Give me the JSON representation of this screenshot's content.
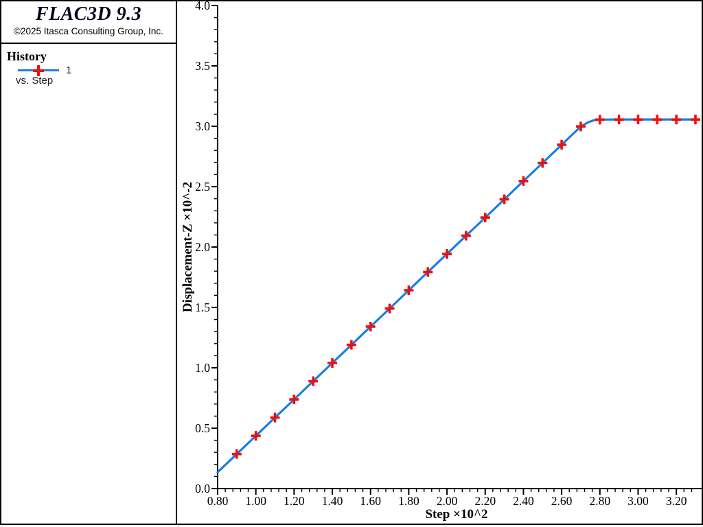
{
  "window": {
    "background": "#ffffff",
    "frame_color": "#000000"
  },
  "sidebar": {
    "title": "FLAC3D 9.3",
    "copyright": "©2025 Itasca Consulting Group, Inc.",
    "section_heading": "History",
    "legend": {
      "series_label": "1",
      "sub_label": "vs. Step",
      "line_color": "#1a7de4",
      "marker_color": "#e81212"
    }
  },
  "chart_data": {
    "type": "line",
    "title": "",
    "xlabel": "Step ×10^2",
    "ylabel": "Displacement-Z ×10^-2",
    "xlim": [
      0.8,
      3.33
    ],
    "ylim": [
      0.0,
      4.0
    ],
    "grid": false,
    "legend_position": "sidebar",
    "axis_color": "#000000",
    "x_major_ticks": [
      0.8,
      1.0,
      1.2,
      1.4,
      1.6,
      1.8,
      2.0,
      2.2,
      2.4,
      2.6,
      2.8,
      3.0,
      3.2
    ],
    "x_tick_labels": [
      "0.80",
      "1.00",
      "1.20",
      "1.40",
      "1.60",
      "1.80",
      "2.00",
      "2.20",
      "2.40",
      "2.60",
      "2.80",
      "3.00",
      "3.20"
    ],
    "x_minor_range": [
      0.8,
      3.28
    ],
    "x_minor_step": 0.04,
    "y_major_ticks": [
      0.0,
      0.5,
      1.0,
      1.5,
      2.0,
      2.5,
      3.0,
      3.5,
      4.0
    ],
    "y_tick_labels": [
      "0.0",
      "0.5",
      "1.0",
      "1.5",
      "2.0",
      "2.5",
      "3.0",
      "3.5",
      "4.0"
    ],
    "y_minor_range": [
      0.0,
      4.0
    ],
    "y_minor_step": 0.1,
    "series": [
      {
        "name": "1",
        "color": "#1a7de4",
        "marker": "plus",
        "marker_color": "#e81212",
        "points": [
          [
            0.8,
            0.135
          ],
          [
            0.9,
            0.286
          ],
          [
            1.0,
            0.437
          ],
          [
            1.1,
            0.588
          ],
          [
            1.2,
            0.738
          ],
          [
            1.3,
            0.889
          ],
          [
            1.4,
            1.04
          ],
          [
            1.5,
            1.19
          ],
          [
            1.6,
            1.341
          ],
          [
            1.7,
            1.491
          ],
          [
            1.8,
            1.642
          ],
          [
            1.9,
            1.793
          ],
          [
            2.0,
            1.943
          ],
          [
            2.1,
            2.094
          ],
          [
            2.2,
            2.244
          ],
          [
            2.3,
            2.395
          ],
          [
            2.4,
            2.546
          ],
          [
            2.5,
            2.696
          ],
          [
            2.6,
            2.847
          ],
          [
            2.7,
            2.998
          ],
          [
            2.74,
            3.034
          ],
          [
            2.77,
            3.05
          ],
          [
            2.8,
            3.055
          ],
          [
            2.9,
            3.056
          ],
          [
            3.0,
            3.056
          ],
          [
            3.1,
            3.056
          ],
          [
            3.2,
            3.056
          ],
          [
            3.3,
            3.056
          ]
        ],
        "marker_points": [
          [
            0.9,
            0.286
          ],
          [
            1.0,
            0.437
          ],
          [
            1.1,
            0.588
          ],
          [
            1.2,
            0.738
          ],
          [
            1.3,
            0.889
          ],
          [
            1.4,
            1.04
          ],
          [
            1.5,
            1.19
          ],
          [
            1.6,
            1.341
          ],
          [
            1.7,
            1.491
          ],
          [
            1.8,
            1.642
          ],
          [
            1.9,
            1.793
          ],
          [
            2.0,
            1.943
          ],
          [
            2.1,
            2.094
          ],
          [
            2.2,
            2.244
          ],
          [
            2.3,
            2.395
          ],
          [
            2.4,
            2.546
          ],
          [
            2.5,
            2.696
          ],
          [
            2.6,
            2.847
          ],
          [
            2.7,
            2.998
          ],
          [
            2.8,
            3.055
          ],
          [
            2.9,
            3.056
          ],
          [
            3.0,
            3.056
          ],
          [
            3.1,
            3.056
          ],
          [
            3.2,
            3.056
          ],
          [
            3.3,
            3.056
          ]
        ]
      }
    ]
  }
}
